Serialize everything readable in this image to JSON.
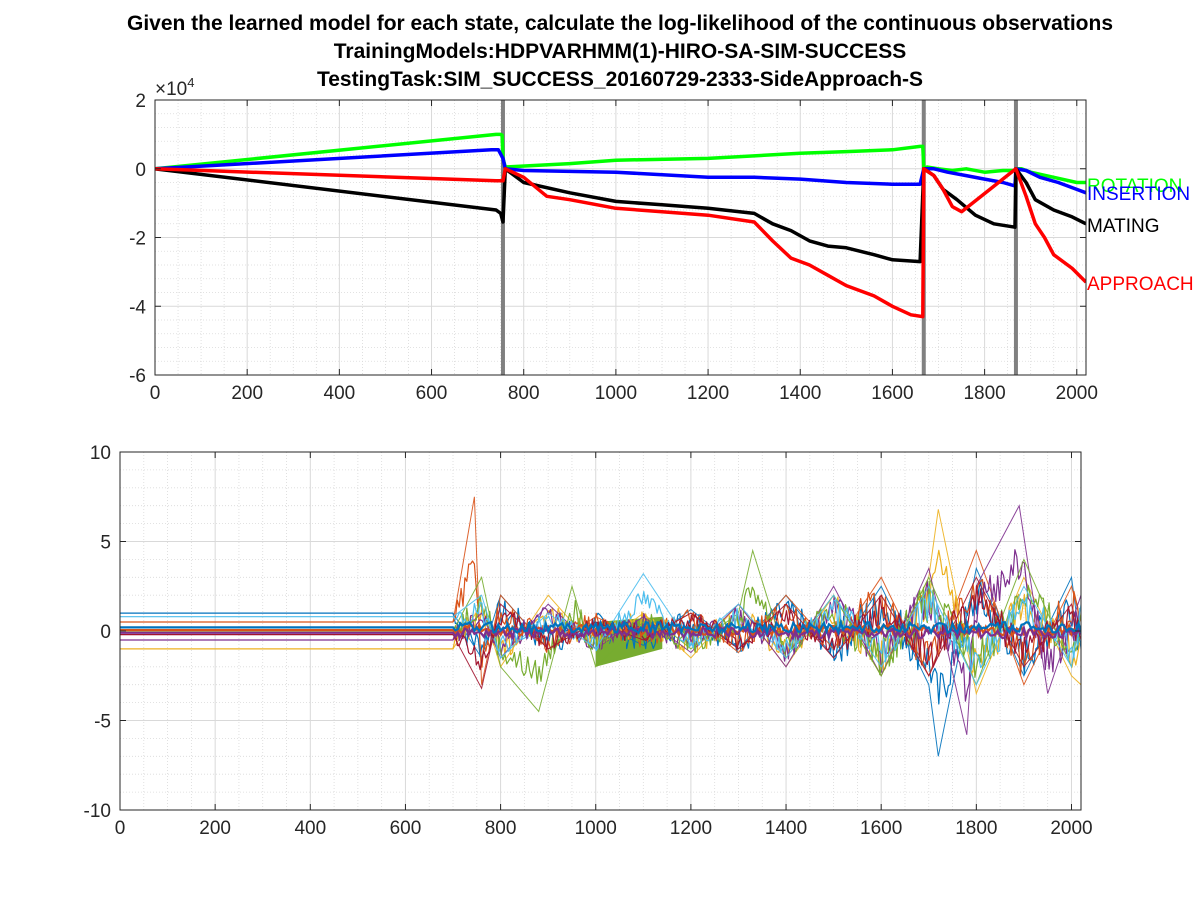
{
  "figure": {
    "title_lines": [
      "Given the learned model for each state, calculate the log-likelihood of the continuous observations",
      "TrainingModels:HDPVARHMM(1)-HIRO-SA-SIM-SUCCESS",
      "TestingTask:SIM_SUCCESS_20160729-2333-SideApproach-S"
    ]
  },
  "chart_data": [
    {
      "type": "line",
      "id": "loglik",
      "xlim": [
        0,
        2020
      ],
      "ylim": [
        -60000,
        20000
      ],
      "xticks": [
        0,
        200,
        400,
        600,
        800,
        1000,
        1200,
        1400,
        1600,
        1800,
        2000
      ],
      "yticks": [
        -60000,
        -40000,
        -20000,
        0,
        20000
      ],
      "ytick_labels": [
        "-6",
        "-4",
        "-2",
        "0",
        "2"
      ],
      "y_exponent_label": {
        "base": "×10",
        "power": "4"
      },
      "grid": true,
      "vertical_lines": [
        755,
        1668,
        1868
      ],
      "vertical_line_color": "#808080",
      "series": [
        {
          "name": "ROTATION",
          "color": "#00ff00",
          "x": [
            0,
            740,
            750,
            753,
            755,
            760,
            900,
            1000,
            1200,
            1400,
            1500,
            1600,
            1660,
            1666,
            1668,
            1675,
            1700,
            1730,
            1760,
            1800,
            1840,
            1866,
            1868,
            1880,
            1900,
            1950,
            2000,
            2020
          ],
          "y": [
            0,
            10000,
            10000,
            9800,
            3000,
            500,
            1500,
            2500,
            3000,
            4500,
            5000,
            5500,
            6500,
            6500,
            0,
            500,
            0,
            -500,
            0,
            -1000,
            -500,
            -500,
            0,
            0,
            -1000,
            -2500,
            -4000,
            -4000
          ]
        },
        {
          "name": "INSERTION",
          "color": "#0000ff",
          "x": [
            0,
            730,
            745,
            755,
            760,
            800,
            1000,
            1200,
            1300,
            1400,
            1500,
            1600,
            1660,
            1668,
            1690,
            1720,
            1760,
            1800,
            1840,
            1866,
            1868,
            1890,
            1920,
            1960,
            2000,
            2020
          ],
          "y": [
            0,
            5500,
            5500,
            3000,
            0,
            -500,
            -1000,
            -2500,
            -2500,
            -3000,
            -4000,
            -4500,
            -4500,
            0,
            0,
            -1000,
            -2000,
            -3000,
            -4000,
            -5000,
            0,
            -500,
            -2500,
            -4000,
            -6000,
            -7000
          ]
        },
        {
          "name": "MATING",
          "color": "#000000",
          "x": [
            0,
            740,
            750,
            755,
            760,
            800,
            900,
            1000,
            1100,
            1200,
            1300,
            1340,
            1380,
            1420,
            1460,
            1500,
            1560,
            1600,
            1660,
            1668,
            1690,
            1710,
            1740,
            1780,
            1820,
            1866,
            1868,
            1890,
            1910,
            1950,
            1990,
            2020
          ],
          "y": [
            0,
            -12000,
            -13000,
            -15500,
            0,
            -4000,
            -7000,
            -9500,
            -10500,
            -11500,
            -13000,
            -16000,
            -18000,
            -21000,
            -22500,
            -23000,
            -25000,
            -26500,
            -27000,
            0,
            -2000,
            -6000,
            -9000,
            -13500,
            -16000,
            -17000,
            0,
            -4000,
            -9000,
            -12000,
            -14000,
            -16000
          ]
        },
        {
          "name": "APPROACH",
          "color": "#ff0000",
          "x": [
            0,
            740,
            755,
            760,
            800,
            850,
            900,
            1000,
            1100,
            1200,
            1300,
            1340,
            1380,
            1420,
            1460,
            1500,
            1560,
            1600,
            1640,
            1666,
            1668,
            1690,
            1710,
            1730,
            1750,
            1868,
            1890,
            1910,
            1930,
            1950,
            1990,
            2020
          ],
          "y": [
            0,
            -3500,
            -3500,
            0,
            -2500,
            -8000,
            -9000,
            -11500,
            -12500,
            -13500,
            -15500,
            -21000,
            -26000,
            -28000,
            -31000,
            -34000,
            -37000,
            -40000,
            -42500,
            -43000,
            0,
            -2000,
            -6000,
            -11000,
            -12500,
            0,
            -8000,
            -16000,
            -20000,
            -25000,
            -29000,
            -33000
          ]
        }
      ]
    },
    {
      "type": "line",
      "id": "observations",
      "xlim": [
        0,
        2020
      ],
      "ylim": [
        -10,
        10
      ],
      "xticks": [
        0,
        200,
        400,
        600,
        800,
        1000,
        1200,
        1400,
        1600,
        1800,
        2000
      ],
      "yticks": [
        -10,
        -5,
        0,
        5,
        10
      ],
      "grid": true,
      "series": [
        {
          "color": "#0072bd",
          "baseline": 1.0,
          "amp": 1.6,
          "x": [
            0,
            700,
            760,
            800,
            900,
            1000,
            1100,
            1200,
            1300,
            1400,
            1500,
            1600,
            1700,
            1720,
            1800,
            1900,
            2000,
            2020
          ],
          "y": [
            1.0,
            1.0,
            -1.5,
            2.0,
            -1.0,
            0.5,
            -0.8,
            1.2,
            -1.0,
            2.0,
            -1.5,
            2.5,
            -3.0,
            -7.0,
            3.5,
            -2.5,
            3.0,
            -1.0
          ]
        },
        {
          "color": "#d95319",
          "baseline": 0.5,
          "amp": 1.4,
          "x": [
            0,
            700,
            745,
            760,
            800,
            900,
            1000,
            1100,
            1200,
            1300,
            1400,
            1500,
            1600,
            1700,
            1800,
            1900,
            2000,
            2020
          ],
          "y": [
            0.5,
            0.5,
            7.5,
            -3.0,
            2.0,
            -1.0,
            0.8,
            -0.5,
            1.0,
            -1.2,
            2.0,
            -1.0,
            3.0,
            -2.5,
            4.5,
            -3.0,
            2.5,
            0.5
          ]
        },
        {
          "color": "#edb120",
          "baseline": -1.0,
          "amp": 1.4,
          "x": [
            0,
            700,
            760,
            800,
            900,
            1000,
            1100,
            1200,
            1300,
            1400,
            1500,
            1600,
            1700,
            1720,
            1800,
            1900,
            2000,
            2020
          ],
          "y": [
            -1.0,
            -1.0,
            1.5,
            -2.0,
            2.0,
            -1.0,
            1.0,
            -1.5,
            1.5,
            -2.0,
            2.0,
            -2.5,
            3.0,
            6.8,
            -3.5,
            3.0,
            -2.5,
            -3.0
          ]
        },
        {
          "color": "#7e2f8e",
          "baseline": -0.5,
          "amp": 1.3,
          "x": [
            0,
            700,
            760,
            800,
            900,
            1000,
            1100,
            1200,
            1300,
            1400,
            1500,
            1600,
            1700,
            1780,
            1800,
            1890,
            1950,
            2020
          ],
          "y": [
            -0.5,
            -0.5,
            1.0,
            -1.5,
            1.5,
            -1.0,
            0.8,
            -1.2,
            1.5,
            -2.0,
            2.5,
            -2.5,
            3.5,
            -5.8,
            2.5,
            7.0,
            -3.5,
            2.0
          ]
        },
        {
          "color": "#77ac30",
          "baseline": 0.0,
          "amp": 1.5,
          "x": [
            0,
            700,
            760,
            800,
            880,
            950,
            1000,
            1100,
            1130,
            1200,
            1300,
            1330,
            1400,
            1500,
            1600,
            1700,
            1800,
            1900,
            2000,
            2020
          ],
          "y": [
            0.0,
            0.0,
            3.0,
            -2.0,
            -4.5,
            2.5,
            -2.0,
            0.5,
            0.5,
            -1.0,
            1.0,
            4.5,
            -1.5,
            2.0,
            -2.5,
            3.0,
            -3.0,
            4.0,
            -2.0,
            1.0
          ]
        },
        {
          "color": "#4dbeee",
          "baseline": 0.8,
          "amp": 1.2,
          "x": [
            0,
            700,
            760,
            800,
            900,
            1000,
            1100,
            1200,
            1300,
            1400,
            1500,
            1600,
            1700,
            1800,
            1900,
            2000,
            2020
          ],
          "y": [
            0.8,
            0.8,
            2.0,
            -1.5,
            1.0,
            -1.0,
            3.2,
            -0.8,
            1.5,
            -1.5,
            2.0,
            -2.0,
            2.5,
            -3.0,
            2.5,
            -2.0,
            1.5
          ]
        },
        {
          "color": "#a2142f",
          "baseline": -0.2,
          "amp": 1.2,
          "x": [
            0,
            700,
            760,
            800,
            900,
            1000,
            1100,
            1200,
            1300,
            1400,
            1500,
            1600,
            1700,
            1800,
            1900,
            2000,
            2020
          ],
          "y": [
            -0.2,
            -0.2,
            -3.2,
            1.5,
            -1.0,
            0.5,
            -0.5,
            1.0,
            -1.0,
            1.5,
            -1.5,
            2.0,
            -2.5,
            3.0,
            -2.0,
            1.5,
            -0.5
          ]
        }
      ],
      "filled_band": {
        "color": "#77ac30",
        "x": [
          1000,
          1140
        ],
        "upper": [
          0.5,
          0.8
        ],
        "lower": [
          -2.0,
          -1.0
        ]
      }
    }
  ]
}
